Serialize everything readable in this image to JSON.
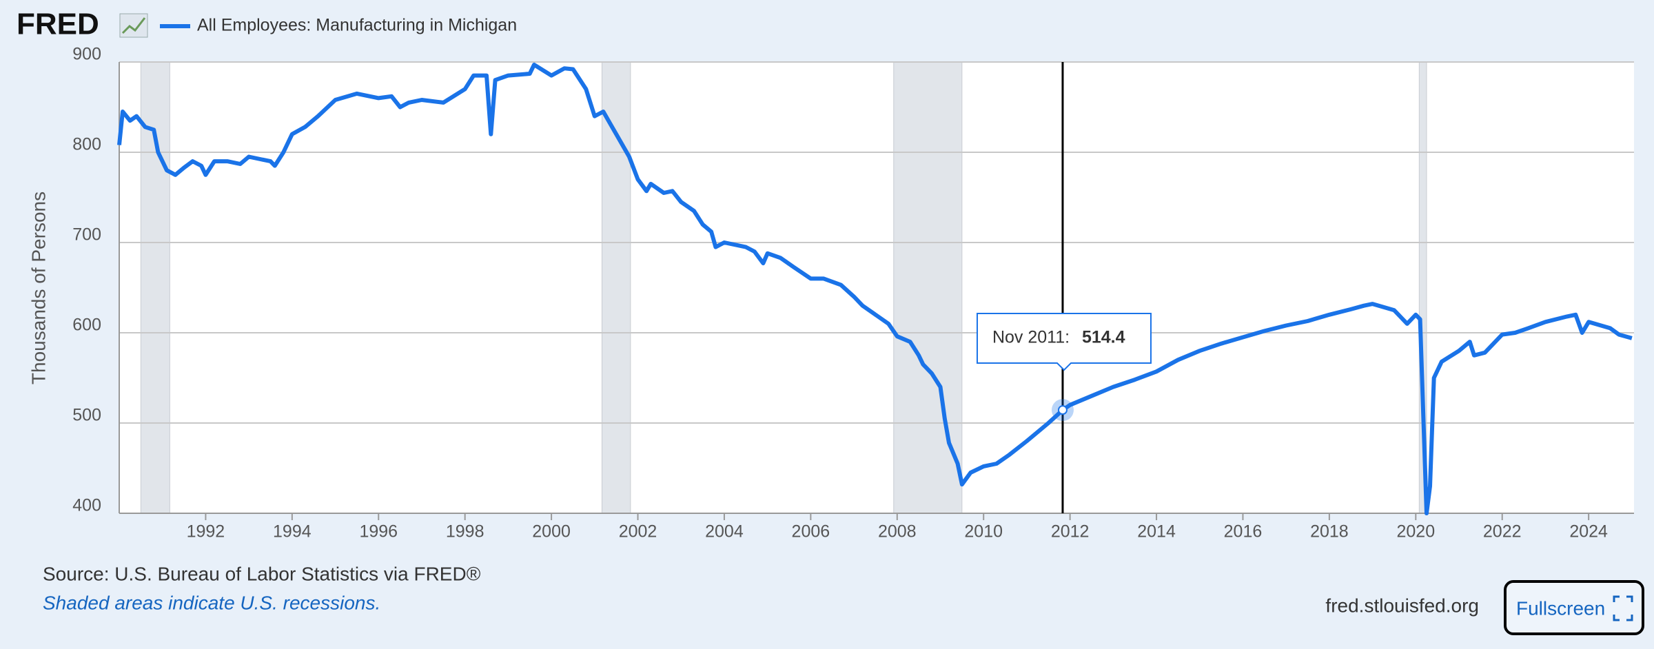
{
  "logo": "FRED",
  "chart_data": {
    "type": "line",
    "y_axis_label": "Thousands of Persons",
    "source": "Source: U.S. Bureau of Labor Statistics via FRED®",
    "note": "Shaded areas indicate U.S. recessions.",
    "site": "fred.stlouisfed.org",
    "button": "Fullscreen",
    "xlim": [
      1990,
      2025.05
    ],
    "ylim": [
      400,
      900
    ],
    "xticks": [
      1992,
      1994,
      1996,
      1998,
      2000,
      2002,
      2004,
      2006,
      2008,
      2010,
      2012,
      2014,
      2016,
      2018,
      2020,
      2022,
      2024
    ],
    "yticks": [
      400,
      500,
      600,
      700,
      800,
      900
    ],
    "grid": true,
    "recessions": [
      [
        1990.5,
        1991.17
      ],
      [
        2001.17,
        2001.83
      ],
      [
        2007.92,
        2009.5
      ],
      [
        2020.08,
        2020.25
      ]
    ],
    "tooltip": {
      "label": "Nov 2011:",
      "x": 2011.83,
      "value": 514.4
    },
    "x": [
      1990.0,
      1990.08,
      1990.25,
      1990.4,
      1990.6,
      1990.8,
      1990.9,
      1991.1,
      1991.3,
      1991.5,
      1991.7,
      1991.9,
      1992.0,
      1992.2,
      1992.5,
      1992.8,
      1993.0,
      1993.3,
      1993.5,
      1993.6,
      1993.8,
      1994.0,
      1994.3,
      1994.6,
      1995.0,
      1995.5,
      1996.0,
      1996.3,
      1996.5,
      1996.7,
      1997.0,
      1997.5,
      1998.0,
      1998.2,
      1998.5,
      1998.6,
      1998.7,
      1999.0,
      1999.5,
      1999.6,
      2000.0,
      2000.3,
      2000.5,
      2000.8,
      2001.0,
      2001.2,
      2001.5,
      2001.8,
      2002.0,
      2002.2,
      2002.3,
      2002.6,
      2002.8,
      2003.0,
      2003.3,
      2003.5,
      2003.7,
      2003.8,
      2004.0,
      2004.5,
      2004.7,
      2004.9,
      2005.0,
      2005.3,
      2005.6,
      2006.0,
      2006.3,
      2006.7,
      2007.0,
      2007.2,
      2007.5,
      2007.8,
      2008.0,
      2008.3,
      2008.5,
      2008.6,
      2008.8,
      2009.0,
      2009.1,
      2009.2,
      2009.4,
      2009.5,
      2009.7,
      2010.0,
      2010.3,
      2010.6,
      2011.0,
      2011.5,
      2011.83,
      2012.0,
      2012.5,
      2013.0,
      2013.5,
      2014.0,
      2014.5,
      2015.0,
      2015.5,
      2016.0,
      2016.5,
      2017.0,
      2017.5,
      2018.0,
      2018.5,
      2018.8,
      2019.0,
      2019.5,
      2019.8,
      2020.0,
      2020.1,
      2020.25,
      2020.33,
      2020.42,
      2020.6,
      2021.0,
      2021.25,
      2021.35,
      2021.6,
      2022.0,
      2022.3,
      2022.6,
      2023.0,
      2023.5,
      2023.7,
      2023.85,
      2024.0,
      2024.5,
      2024.7,
      2025.0
    ],
    "series": [
      {
        "name": "All Employees: Manufacturing in Michigan",
        "color": "#1a73e8",
        "values": [
          808,
          845,
          835,
          840,
          828,
          825,
          800,
          780,
          775,
          783,
          790,
          785,
          775,
          790,
          790,
          787,
          795,
          792,
          790,
          785,
          800,
          820,
          828,
          840,
          858,
          865,
          860,
          862,
          850,
          855,
          858,
          855,
          870,
          885,
          885,
          820,
          880,
          885,
          887,
          897,
          885,
          893,
          892,
          870,
          840,
          845,
          820,
          795,
          770,
          757,
          765,
          755,
          757,
          745,
          735,
          720,
          712,
          695,
          700,
          695,
          690,
          677,
          688,
          683,
          673,
          660,
          660,
          653,
          640,
          630,
          620,
          610,
          596,
          590,
          575,
          565,
          555,
          540,
          505,
          478,
          455,
          432,
          445,
          452,
          455,
          465,
          480,
          500,
          514.4,
          520,
          530,
          540,
          548,
          557,
          570,
          580,
          588,
          595,
          602,
          608,
          613,
          620,
          626,
          630,
          632,
          625,
          610,
          620,
          615,
          400,
          430,
          550,
          568,
          580,
          590,
          575,
          578,
          598,
          600,
          605,
          612,
          618,
          620,
          600,
          612,
          605,
          598,
          594
        ]
      }
    ]
  }
}
